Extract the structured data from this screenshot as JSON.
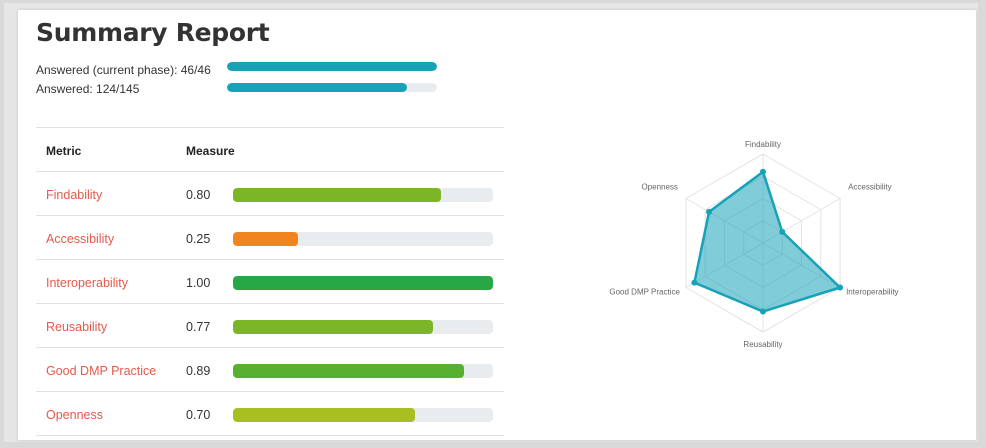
{
  "report": {
    "title": "Summary Report",
    "answered_current_label": "Answered (current phase): 46/46",
    "answered_current_fraction": 1.0,
    "answered_total_label": "Answered: 124/145",
    "answered_total_fraction": 0.855,
    "progress_color": "#17a2b8"
  },
  "table": {
    "header_metric": "Metric",
    "header_measure": "Measure",
    "rows": [
      {
        "name": "Findability",
        "value": "0.80",
        "fraction": 0.8,
        "color": "#7cb526"
      },
      {
        "name": "Accessibility",
        "value": "0.25",
        "fraction": 0.25,
        "color": "#f0841e"
      },
      {
        "name": "Interoperability",
        "value": "1.00",
        "fraction": 1.0,
        "color": "#28a745"
      },
      {
        "name": "Reusability",
        "value": "0.77",
        "fraction": 0.77,
        "color": "#7cb526"
      },
      {
        "name": "Good DMP Practice",
        "value": "0.89",
        "fraction": 0.89,
        "color": "#57b02f"
      },
      {
        "name": "Openness",
        "value": "0.70",
        "fraction": 0.7,
        "color": "#a8bf20"
      }
    ]
  },
  "chart_data": {
    "type": "radar",
    "categories": [
      "Findability",
      "Accessibility",
      "Interoperability",
      "Reusability",
      "Good DMP Practice",
      "Openness"
    ],
    "series": [
      {
        "values": [
          0.8,
          0.25,
          1.0,
          0.77,
          0.89,
          0.7
        ]
      }
    ],
    "range": [
      0,
      1
    ],
    "grid": true,
    "fill_color": "#17a2b8"
  }
}
